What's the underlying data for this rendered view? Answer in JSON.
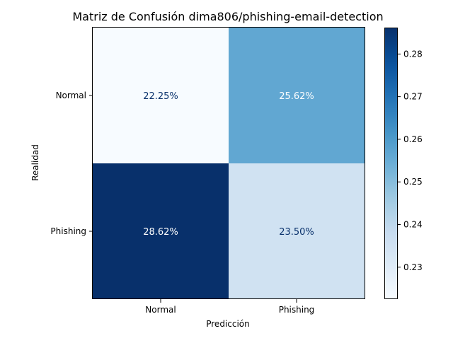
{
  "chart_data": {
    "type": "heatmap",
    "title": "Matriz de Confusión dima806/phishing-email-detection",
    "xlabel": "Predicción",
    "ylabel": "Realidad",
    "x_categories": [
      "Normal",
      "Phishing"
    ],
    "y_categories": [
      "Normal",
      "Phishing"
    ],
    "values": [
      [
        0.2225,
        0.2562
      ],
      [
        0.2862,
        0.235
      ]
    ],
    "cell_labels": [
      [
        "22.25%",
        "25.62%"
      ],
      [
        "28.62%",
        "23.50%"
      ]
    ],
    "colormap": "Blues",
    "color_range": [
      0.2225,
      0.2862
    ],
    "colorbar_ticks": [
      0.23,
      0.24,
      0.25,
      0.26,
      0.27,
      0.28
    ],
    "colorbar_tick_labels": [
      "0.23",
      "0.24",
      "0.25",
      "0.26",
      "0.27",
      "0.28"
    ],
    "grid": false,
    "colorbar_position": "right"
  }
}
